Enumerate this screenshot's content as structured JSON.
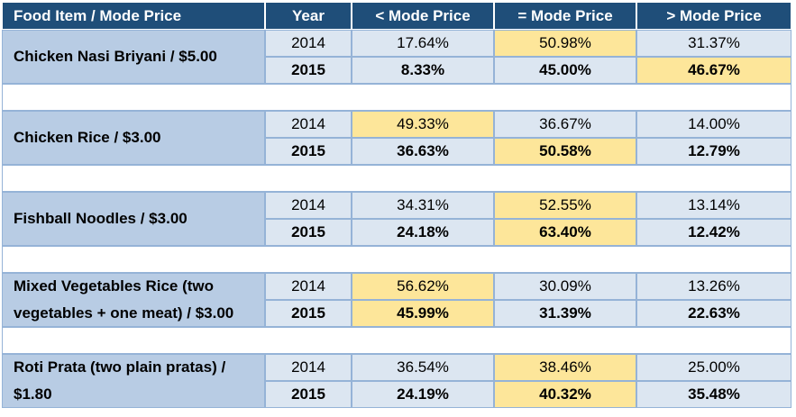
{
  "table": {
    "columns": [
      "Food Item / Mode Price",
      "Year",
      "< Mode Price",
      "= Mode Price",
      "> Mode Price"
    ],
    "groups": [
      {
        "item": "Chicken Nasi Briyani / $5.00",
        "rows": [
          {
            "year": "2014",
            "values": [
              "17.64%",
              "50.98%",
              "31.37%"
            ],
            "highlight": 1
          },
          {
            "year": "2015",
            "values": [
              "8.33%",
              "45.00%",
              "46.67%"
            ],
            "highlight": 2
          }
        ]
      },
      {
        "item": "Chicken Rice / $3.00",
        "rows": [
          {
            "year": "2014",
            "values": [
              "49.33%",
              "36.67%",
              "14.00%"
            ],
            "highlight": 0
          },
          {
            "year": "2015",
            "values": [
              "36.63%",
              "50.58%",
              "12.79%"
            ],
            "highlight": 1
          }
        ]
      },
      {
        "item": "Fishball Noodles / $3.00",
        "rows": [
          {
            "year": "2014",
            "values": [
              "34.31%",
              "52.55%",
              "13.14%"
            ],
            "highlight": 1
          },
          {
            "year": "2015",
            "values": [
              "24.18%",
              "63.40%",
              "12.42%"
            ],
            "highlight": 1
          }
        ]
      },
      {
        "item": "Mixed Vegetables Rice (two vegetables + one meat) / $3.00",
        "rows": [
          {
            "year": "2014",
            "values": [
              "56.62%",
              "30.09%",
              "13.26%"
            ],
            "highlight": 0
          },
          {
            "year": "2015",
            "values": [
              "45.99%",
              "31.39%",
              "22.63%"
            ],
            "highlight": 0
          }
        ]
      },
      {
        "item": "Roti Prata (two plain pratas) / $1.80",
        "rows": [
          {
            "year": "2014",
            "values": [
              "36.54%",
              "38.46%",
              "25.00%"
            ],
            "highlight": 1
          },
          {
            "year": "2015",
            "values": [
              "24.19%",
              "40.32%",
              "35.48%"
            ],
            "highlight": 1
          }
        ]
      }
    ]
  }
}
